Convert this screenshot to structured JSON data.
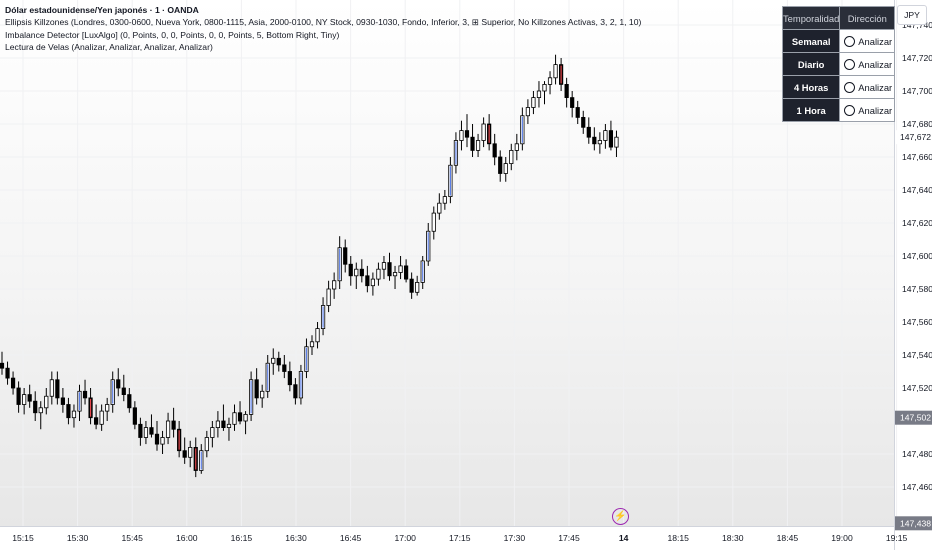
{
  "legend": {
    "symbol": "Dólar estadounidense/Yen japonés · 1 · OANDA",
    "indicator1": "Ellipsis Killzones (Londres, 0300-0600, Nueva York, 0800-1115, Asia, 2000-0100, NY Stock, 0930-1030, Fondo, Inferior, 3, ⊞ Superior, No Killzones Activas, 3, 2, 1, 10)",
    "indicator2": "Imbalance Detector [LuxAlgo] (0, Points, 0, 0, Points, 0, 0, Points, 5, Bottom Right, Tiny)",
    "indicator3": "Lectura de Velas (Analizar, Analizar, Analizar, Analizar)"
  },
  "currency_button": "JPY",
  "table": {
    "header_tf": "Temporalidad",
    "header_dir": "Dirección",
    "rows": [
      {
        "tf": "Semanal",
        "dir": "Analizar"
      },
      {
        "tf": "Diario",
        "dir": "Analizar"
      },
      {
        "tf": "4 Horas",
        "dir": "Analizar"
      },
      {
        "tf": "1 Hora",
        "dir": "Analizar"
      }
    ]
  },
  "colors": {
    "bull": "#ffffff",
    "bear": "#000000",
    "wick": "#000000",
    "imbalance_bull": "#5b7ee5",
    "imbalance_bear": "#e5484d",
    "price_tag_bg": "#1e222d",
    "price_tag_text": "#ffffff",
    "gray_tag_bg": "#787b86"
  },
  "chart_data": {
    "type": "candlestick",
    "y_axis_ticks": [
      "147,740",
      "147,720",
      "147,700",
      "147,680",
      "147,660",
      "147,640",
      "147,620",
      "147,600",
      "147,580",
      "147,560",
      "147,540",
      "147,520",
      "147,480",
      "147,460"
    ],
    "x_axis_ticks": [
      "15:15",
      "15:30",
      "15:45",
      "16:00",
      "16:15",
      "16:30",
      "16:45",
      "17:00",
      "17:15",
      "17:30",
      "17:45",
      "14",
      "18:15",
      "18:30",
      "18:45",
      "19:00",
      "19:15"
    ],
    "price_tags": {
      "current": "147,672",
      "upper_label": "147,680",
      "mid": "147,502",
      "bottom": "147,438"
    },
    "ylim": [
      147.43,
      147.745
    ],
    "ohlc": [
      [
        147.535,
        147.542,
        147.528,
        147.532
      ],
      [
        147.532,
        147.536,
        147.522,
        147.526
      ],
      [
        147.526,
        147.53,
        147.516,
        147.52
      ],
      [
        147.52,
        147.524,
        147.505,
        147.51
      ],
      [
        147.51,
        147.52,
        147.504,
        147.516
      ],
      [
        147.516,
        147.522,
        147.508,
        147.512
      ],
      [
        147.512,
        147.518,
        147.5,
        147.505
      ],
      [
        147.505,
        147.512,
        147.495,
        147.508
      ],
      [
        147.508,
        147.52,
        147.504,
        147.515
      ],
      [
        147.515,
        147.53,
        147.51,
        147.525
      ],
      [
        147.525,
        147.53,
        147.51,
        147.514
      ],
      [
        147.514,
        147.52,
        147.505,
        147.51
      ],
      [
        147.51,
        147.514,
        147.498,
        147.502
      ],
      [
        147.502,
        147.51,
        147.496,
        147.506
      ],
      [
        147.506,
        147.522,
        147.5,
        147.518
      ],
      [
        147.518,
        147.525,
        147.51,
        147.514
      ],
      [
        147.514,
        147.52,
        147.498,
        147.502
      ],
      [
        147.502,
        147.51,
        147.495,
        147.498
      ],
      [
        147.498,
        147.51,
        147.494,
        147.506
      ],
      [
        147.506,
        147.514,
        147.5,
        147.51
      ],
      [
        147.51,
        147.53,
        147.505,
        147.525
      ],
      [
        147.525,
        147.532,
        147.515,
        147.52
      ],
      [
        147.52,
        147.528,
        147.512,
        147.516
      ],
      [
        147.516,
        147.52,
        147.505,
        147.508
      ],
      [
        147.508,
        147.512,
        147.495,
        147.498
      ],
      [
        147.498,
        147.502,
        147.485,
        147.49
      ],
      [
        147.49,
        147.5,
        147.486,
        147.496
      ],
      [
        147.496,
        147.504,
        147.49,
        147.492
      ],
      [
        147.492,
        147.5,
        147.482,
        147.486
      ],
      [
        147.486,
        147.494,
        147.48,
        147.49
      ],
      [
        147.49,
        147.505,
        147.486,
        147.5
      ],
      [
        147.5,
        147.508,
        147.49,
        147.495
      ],
      [
        147.495,
        147.5,
        147.478,
        147.482
      ],
      [
        147.482,
        147.49,
        147.474,
        147.478
      ],
      [
        147.478,
        147.488,
        147.472,
        147.484
      ],
      [
        147.484,
        147.49,
        147.466,
        147.47
      ],
      [
        147.47,
        147.486,
        147.468,
        147.482
      ],
      [
        147.482,
        147.494,
        147.478,
        147.49
      ],
      [
        147.49,
        147.5,
        147.484,
        147.496
      ],
      [
        147.496,
        147.506,
        147.49,
        147.5
      ],
      [
        147.5,
        147.51,
        147.494,
        147.496
      ],
      [
        147.496,
        147.502,
        147.488,
        147.498
      ],
      [
        147.498,
        147.51,
        147.494,
        147.505
      ],
      [
        147.505,
        147.512,
        147.498,
        147.5
      ],
      [
        147.5,
        147.506,
        147.492,
        147.504
      ],
      [
        147.504,
        147.53,
        147.5,
        147.525
      ],
      [
        147.525,
        147.532,
        147.51,
        147.514
      ],
      [
        147.514,
        147.522,
        147.508,
        147.518
      ],
      [
        147.518,
        147.54,
        147.514,
        147.535
      ],
      [
        147.535,
        147.544,
        147.528,
        147.538
      ],
      [
        147.538,
        147.542,
        147.53,
        147.534
      ],
      [
        147.534,
        147.54,
        147.526,
        147.53
      ],
      [
        147.53,
        147.536,
        147.518,
        147.522
      ],
      [
        147.522,
        147.526,
        147.51,
        147.514
      ],
      [
        147.514,
        147.534,
        147.51,
        147.53
      ],
      [
        147.53,
        147.55,
        147.526,
        147.545
      ],
      [
        147.545,
        147.552,
        147.54,
        147.548
      ],
      [
        147.548,
        147.56,
        147.544,
        147.556
      ],
      [
        147.556,
        147.575,
        147.552,
        147.57
      ],
      [
        147.57,
        147.585,
        147.566,
        147.58
      ],
      [
        147.58,
        147.59,
        147.574,
        147.585
      ],
      [
        147.585,
        147.612,
        147.58,
        147.605
      ],
      [
        147.605,
        147.61,
        147.59,
        147.595
      ],
      [
        147.595,
        147.6,
        147.582,
        147.588
      ],
      [
        147.588,
        147.596,
        147.58,
        147.592
      ],
      [
        147.592,
        147.598,
        147.584,
        147.588
      ],
      [
        147.588,
        147.594,
        147.578,
        147.582
      ],
      [
        147.582,
        147.59,
        147.576,
        147.586
      ],
      [
        147.586,
        147.596,
        147.582,
        147.592
      ],
      [
        147.592,
        147.6,
        147.586,
        147.596
      ],
      [
        147.596,
        147.602,
        147.585,
        147.588
      ],
      [
        147.588,
        147.594,
        147.58,
        147.59
      ],
      [
        147.59,
        147.6,
        147.586,
        147.594
      ],
      [
        147.594,
        147.598,
        147.584,
        147.586
      ],
      [
        147.586,
        147.59,
        147.574,
        147.578
      ],
      [
        147.578,
        147.588,
        147.576,
        147.584
      ],
      [
        147.584,
        147.6,
        147.58,
        147.597
      ],
      [
        147.597,
        147.62,
        147.594,
        147.615
      ],
      [
        147.615,
        147.63,
        147.61,
        147.626
      ],
      [
        147.626,
        147.638,
        147.622,
        147.632
      ],
      [
        147.632,
        147.64,
        147.628,
        147.636
      ],
      [
        147.636,
        147.66,
        147.632,
        147.655
      ],
      [
        147.655,
        147.675,
        147.65,
        147.67
      ],
      [
        147.67,
        147.682,
        147.664,
        147.676
      ],
      [
        147.676,
        147.686,
        147.666,
        147.672
      ],
      [
        147.672,
        147.68,
        147.66,
        147.664
      ],
      [
        147.664,
        147.674,
        147.66,
        147.67
      ],
      [
        147.67,
        147.684,
        147.666,
        147.68
      ],
      [
        147.68,
        147.686,
        147.664,
        147.668
      ],
      [
        147.668,
        147.674,
        147.655,
        147.66
      ],
      [
        147.66,
        147.664,
        147.645,
        147.65
      ],
      [
        147.65,
        147.66,
        147.645,
        147.656
      ],
      [
        147.656,
        147.668,
        147.652,
        147.664
      ],
      [
        147.664,
        147.674,
        147.658,
        147.668
      ],
      [
        147.668,
        147.69,
        147.664,
        147.685
      ],
      [
        147.685,
        147.695,
        147.68,
        147.69
      ],
      [
        147.69,
        147.7,
        147.686,
        147.696
      ],
      [
        147.696,
        147.706,
        147.69,
        147.7
      ],
      [
        147.7,
        147.706,
        147.692,
        147.704
      ],
      [
        147.704,
        147.712,
        147.698,
        147.708
      ],
      [
        147.708,
        147.722,
        147.704,
        147.716
      ],
      [
        147.716,
        147.72,
        147.7,
        147.704
      ],
      [
        147.704,
        147.708,
        147.69,
        147.696
      ],
      [
        147.696,
        147.7,
        147.684,
        147.69
      ],
      [
        147.69,
        147.694,
        147.68,
        147.684
      ],
      [
        147.684,
        147.688,
        147.674,
        147.678
      ],
      [
        147.678,
        147.684,
        147.668,
        147.672
      ],
      [
        147.672,
        147.678,
        147.664,
        147.668
      ],
      [
        147.668,
        147.675,
        147.662,
        147.67
      ],
      [
        147.67,
        147.68,
        147.665,
        147.676
      ],
      [
        147.676,
        147.682,
        147.664,
        147.666
      ],
      [
        147.666,
        147.676,
        147.66,
        147.672
      ]
    ]
  }
}
